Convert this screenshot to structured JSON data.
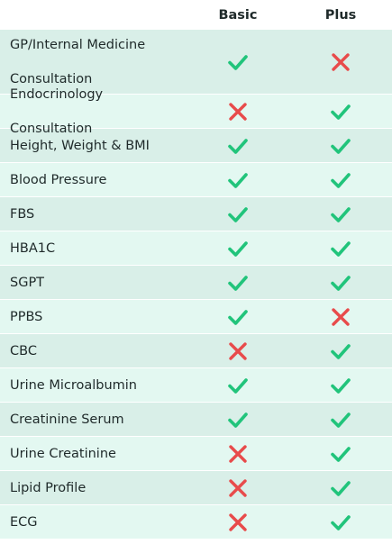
{
  "header": {
    "col1": "Basic",
    "col2": "Plus"
  },
  "colors": {
    "check": "#21c47b",
    "cross": "#e84b4b",
    "row_dark": "#d9efe8",
    "row_light": "#e3f8f1"
  },
  "rows": [
    {
      "label": "GP/Internal Medicine\nConsultation",
      "basic": true,
      "plus": false
    },
    {
      "label": "Endocrinology Consultation",
      "basic": false,
      "plus": true
    },
    {
      "label": "Height, Weight & BMI",
      "basic": true,
      "plus": true
    },
    {
      "label": "Blood Pressure",
      "basic": true,
      "plus": true
    },
    {
      "label": "FBS",
      "basic": true,
      "plus": true
    },
    {
      "label": "HBA1C",
      "basic": true,
      "plus": true
    },
    {
      "label": "SGPT",
      "basic": true,
      "plus": true
    },
    {
      "label": "PPBS",
      "basic": true,
      "plus": false
    },
    {
      "label": "CBC",
      "basic": false,
      "plus": true
    },
    {
      "label": "Urine Microalbumin",
      "basic": true,
      "plus": true
    },
    {
      "label": "Creatinine Serum",
      "basic": true,
      "plus": true
    },
    {
      "label": "Urine Creatinine",
      "basic": false,
      "plus": true
    },
    {
      "label": "Lipid Profile",
      "basic": false,
      "plus": true
    },
    {
      "label": "ECG",
      "basic": false,
      "plus": true
    }
  ]
}
